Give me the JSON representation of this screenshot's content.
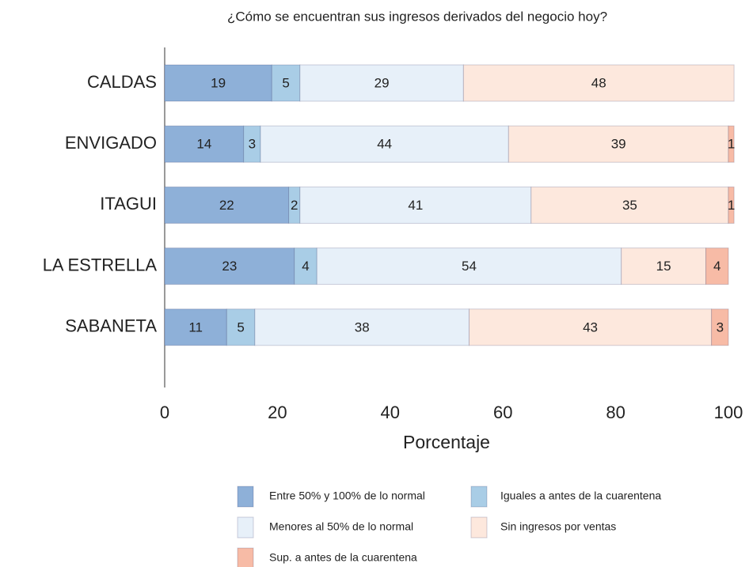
{
  "chart_data": {
    "type": "barh_stacked",
    "title": "¿Cómo se encuentran sus ingresos derivados del negocio hoy?",
    "xlabel": "Porcentaje",
    "categories": [
      "CALDAS",
      "ENVIGADO",
      "ITAGUI",
      "LA ESTRELLA",
      "SABANETA"
    ],
    "series": [
      {
        "name": "Entre 50% y 100% de lo normal",
        "color": "#8eb0d8",
        "values": [
          19,
          14,
          22,
          23,
          11
        ]
      },
      {
        "name": "Iguales a antes de la cuarentena",
        "color": "#a9cde6",
        "values": [
          5,
          3,
          2,
          4,
          5
        ]
      },
      {
        "name": "Menores al 50% de lo normal",
        "color": "#e7f0f9",
        "values": [
          29,
          44,
          41,
          54,
          38
        ]
      },
      {
        "name": "Sin ingresos por ventas",
        "color": "#fde8dd",
        "values": [
          48,
          39,
          35,
          15,
          43
        ]
      },
      {
        "name": "Sup. a antes de la cuarentena",
        "color": "#f7bba6",
        "values": [
          null,
          1,
          1,
          4,
          3
        ]
      }
    ],
    "xlim": [
      0,
      100
    ],
    "xticks": [
      0,
      20,
      40,
      60,
      80,
      100
    ]
  }
}
